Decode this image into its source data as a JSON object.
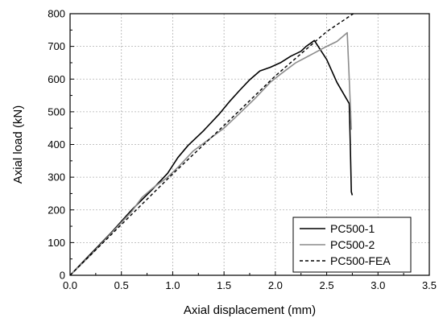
{
  "chart_data": {
    "type": "line",
    "title": "",
    "xlabel": "Axial displacement (mm)",
    "ylabel": "Axial load (kN)",
    "xlim": [
      0.0,
      3.5
    ],
    "ylim": [
      0,
      800
    ],
    "xticks": [
      "0.0",
      "0.5",
      "1.0",
      "1.5",
      "2.0",
      "2.5",
      "3.0",
      "3.5"
    ],
    "yticks": [
      "0",
      "100",
      "200",
      "300",
      "400",
      "500",
      "600",
      "700",
      "800"
    ],
    "grid": true,
    "legend_position": "bottom-right",
    "series": [
      {
        "name": "PC500-1",
        "color": "#000000",
        "dash": "solid",
        "x": [
          0.0,
          0.2,
          0.4,
          0.6,
          0.8,
          0.95,
          1.05,
          1.15,
          1.3,
          1.45,
          1.55,
          1.65,
          1.75,
          1.85,
          1.95,
          2.05,
          2.15,
          2.25,
          2.3,
          2.38,
          2.5,
          2.6,
          2.72,
          2.73,
          2.74,
          2.75
        ],
        "y": [
          0,
          65,
          130,
          200,
          262,
          312,
          360,
          397,
          442,
          492,
          530,
          565,
          598,
          625,
          636,
          650,
          670,
          685,
          700,
          718,
          660,
          590,
          525,
          400,
          255,
          245
        ]
      },
      {
        "name": "PC500-2",
        "color": "#8c8c8c",
        "dash": "solid",
        "x": [
          0.0,
          0.2,
          0.4,
          0.6,
          0.7,
          0.8,
          0.95,
          1.05,
          1.2,
          1.35,
          1.5,
          1.65,
          1.8,
          1.95,
          2.05,
          2.2,
          2.35,
          2.5,
          2.6,
          2.7,
          2.72,
          2.74
        ],
        "y": [
          0,
          62,
          128,
          195,
          238,
          265,
          300,
          330,
          380,
          415,
          450,
          495,
          540,
          590,
          615,
          650,
          675,
          700,
          715,
          742,
          600,
          445
        ]
      },
      {
        "name": "PC500-FEA",
        "color": "#000000",
        "dash": "dashed",
        "x": [
          0.0,
          0.5,
          1.0,
          1.5,
          2.0,
          2.5,
          2.76
        ],
        "y": [
          0,
          155,
          310,
          458,
          610,
          745,
          800
        ]
      }
    ]
  }
}
